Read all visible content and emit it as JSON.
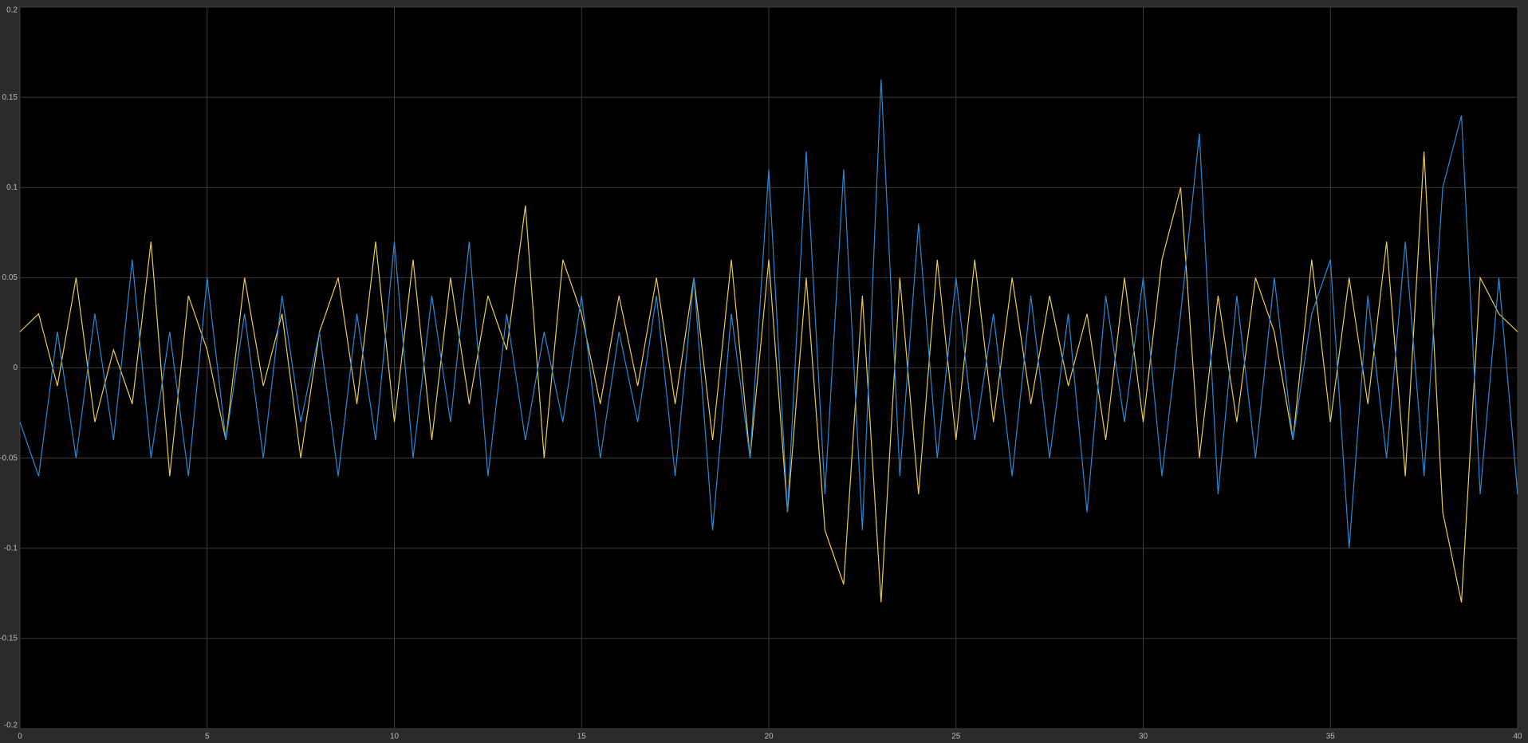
{
  "chart_data": {
    "type": "line",
    "x": [
      0,
      0.5,
      1,
      1.5,
      2,
      2.5,
      3,
      3.5,
      4,
      4.5,
      5,
      5.5,
      6,
      6.5,
      7,
      7.5,
      8,
      8.5,
      9,
      9.5,
      10,
      10.5,
      11,
      11.5,
      12,
      12.5,
      13,
      13.5,
      14,
      14.5,
      15,
      15.5,
      16,
      16.5,
      17,
      17.5,
      18,
      18.5,
      19,
      19.5,
      20,
      20.5,
      21,
      21.5,
      22,
      22.5,
      23,
      23.5,
      24,
      24.5,
      25,
      25.5,
      26,
      26.5,
      27,
      27.5,
      28,
      28.5,
      29,
      29.5,
      30,
      30.5,
      31,
      31.5,
      32,
      32.5,
      33,
      33.5,
      34,
      34.5,
      35,
      35.5,
      36,
      36.5,
      37,
      37.5,
      38,
      38.5,
      39,
      39.5,
      40
    ],
    "series": [
      {
        "color": "#e9cc55",
        "values": [
          0.02,
          0.03,
          -0.01,
          0.05,
          -0.03,
          0.01,
          -0.02,
          0.07,
          -0.06,
          0.04,
          0.01,
          -0.04,
          0.05,
          -0.01,
          0.03,
          -0.05,
          0.02,
          0.05,
          -0.02,
          0.07,
          -0.03,
          0.06,
          -0.04,
          0.05,
          -0.02,
          0.04,
          0.01,
          0.09,
          -0.05,
          0.06,
          0.03,
          -0.02,
          0.04,
          -0.01,
          0.05,
          -0.02,
          0.05,
          -0.04,
          0.06,
          -0.05,
          0.06,
          -0.08,
          0.05,
          -0.09,
          -0.12,
          0.04,
          -0.13,
          0.05,
          -0.07,
          0.06,
          -0.04,
          0.06,
          -0.03,
          0.05,
          -0.02,
          0.04,
          -0.01,
          0.03,
          -0.04,
          0.05,
          -0.03,
          0.06,
          0.1,
          -0.05,
          0.04,
          -0.03,
          0.05,
          0.02,
          -0.04,
          0.06,
          -0.03,
          0.05,
          -0.02,
          0.07,
          -0.06,
          0.12,
          -0.08,
          -0.13,
          0.05,
          0.03,
          0.02
        ]
      },
      {
        "color": "#2b8ad6",
        "values": [
          -0.03,
          -0.06,
          0.02,
          -0.05,
          0.03,
          -0.04,
          0.06,
          -0.05,
          0.02,
          -0.06,
          0.05,
          -0.04,
          0.03,
          -0.05,
          0.04,
          -0.03,
          0.02,
          -0.06,
          0.03,
          -0.04,
          0.07,
          -0.05,
          0.04,
          -0.03,
          0.07,
          -0.06,
          0.03,
          -0.04,
          0.02,
          -0.03,
          0.04,
          -0.05,
          0.02,
          -0.03,
          0.04,
          -0.06,
          0.05,
          -0.09,
          0.03,
          -0.05,
          0.11,
          -0.08,
          0.12,
          -0.07,
          0.11,
          -0.09,
          0.16,
          -0.06,
          0.08,
          -0.05,
          0.05,
          -0.04,
          0.03,
          -0.06,
          0.04,
          -0.05,
          0.03,
          -0.08,
          0.04,
          -0.03,
          0.05,
          -0.06,
          0.03,
          0.13,
          -0.07,
          0.04,
          -0.05,
          0.05,
          -0.04,
          0.03,
          0.06,
          -0.1,
          0.04,
          -0.05,
          0.07,
          -0.06,
          0.1,
          0.14,
          -0.07,
          0.05,
          -0.07
        ]
      }
    ],
    "xlim": [
      0,
      40
    ],
    "xticks": [
      0,
      5,
      10,
      15,
      20,
      25,
      30,
      35,
      40
    ],
    "ylim": [
      -0.2,
      0.2
    ],
    "yticks": [
      -0.2,
      -0.15,
      -0.1,
      -0.05,
      0,
      0.05,
      0.1,
      0.15,
      0.2
    ],
    "grid": true
  }
}
